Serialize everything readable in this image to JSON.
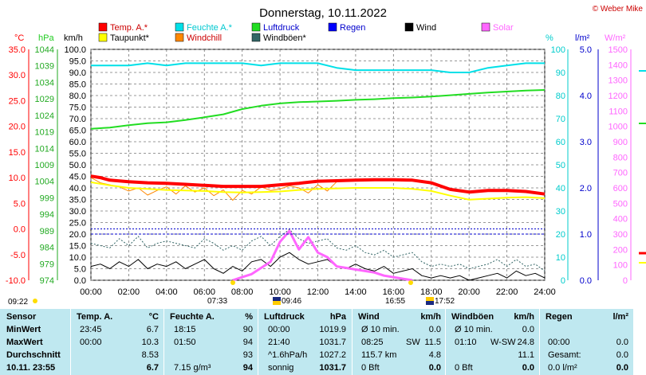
{
  "title": "Donnerstag, 10.11.2022",
  "copyright": "© Weber Mike",
  "legend": [
    {
      "label": "Temp. A.*",
      "color": "#ff0000"
    },
    {
      "label": "Feuchte A.*",
      "color": "#00e0e8"
    },
    {
      "label": "Luftdruck",
      "color": "#22dd22"
    },
    {
      "label": "Regen",
      "color": "#0000ff"
    },
    {
      "label": "Wind",
      "color": "#000000"
    },
    {
      "label": "Solar",
      "color": "#ff66ff"
    },
    {
      "label": "Taupunkt*",
      "color": "#ffff00"
    },
    {
      "label": "Windchill",
      "color": "#ff8800"
    },
    {
      "label": "Windböen*",
      "color": "#336666"
    }
  ],
  "axis_units": {
    "temp": "°C",
    "pressure": "hPa",
    "wind": "km/h",
    "humidity": "%",
    "rain": "l/m²",
    "solar": "W/m²"
  },
  "axis_colors": {
    "temp": "#ff0000",
    "pressure": "#22cc22",
    "wind": "#000000",
    "humidity": "#00cccc",
    "rain": "#0000cc",
    "solar": "#ff66ff"
  },
  "axis_ticks": {
    "temp": [
      "35.0",
      "30.0",
      "25.0",
      "20.0",
      "15.0",
      "10.0",
      "5.0",
      "0.0",
      "-5.0",
      "-10.0"
    ],
    "pressure": [
      "1044",
      "1039",
      "1034",
      "1029",
      "1024",
      "1019",
      "1014",
      "1009",
      "1004",
      "999",
      "994",
      "989",
      "984",
      "979",
      "974"
    ],
    "wind": [
      "100.0",
      "95.0",
      "90.0",
      "85.0",
      "80.0",
      "75.0",
      "70.0",
      "65.0",
      "60.0",
      "55.0",
      "50.0",
      "45.0",
      "40.0",
      "35.0",
      "30.0",
      "25.0",
      "20.0",
      "15.0",
      "10.0",
      "5.0",
      "0.0"
    ],
    "humidity": [
      "100",
      "90",
      "80",
      "70",
      "60",
      "50",
      "40",
      "30",
      "20",
      "10",
      "0"
    ],
    "rain": [
      "5.0",
      "4.0",
      "3.0",
      "2.0",
      "1.0",
      "0.0"
    ],
    "solar": [
      "1500",
      "1400",
      "1300",
      "1200",
      "1100",
      "1000",
      "900",
      "800",
      "700",
      "600",
      "500",
      "400",
      "300",
      "200",
      "100",
      "0"
    ],
    "time": [
      "00:00",
      "02:00",
      "04:00",
      "06:00",
      "08:00",
      "10:00",
      "12:00",
      "14:00",
      "16:00",
      "18:00",
      "20:00",
      "22:00",
      "24:00"
    ]
  },
  "sun_times": {
    "dawn": "07:33",
    "sunrise": "09:46",
    "noon_mark": "09:22",
    "sunset": "16:55",
    "dusk": "17:52"
  },
  "chart_data": {
    "type": "line",
    "title": "Donnerstag, 10.11.2022",
    "x_unit": "hours",
    "xlim": [
      0,
      24
    ],
    "series": [
      {
        "name": "Temp. A.*",
        "axis": "temp",
        "color": "#ff0000",
        "x": [
          0,
          0.5,
          1,
          2,
          3,
          4,
          5,
          6,
          7,
          8,
          9,
          10,
          11,
          12,
          13,
          14,
          15,
          16,
          17,
          18,
          19,
          20,
          21,
          22,
          23,
          24
        ],
        "y": [
          10.3,
          10.0,
          9.5,
          9.2,
          9.0,
          8.9,
          8.7,
          8.5,
          8.3,
          8.3,
          8.3,
          8.6,
          8.9,
          9.3,
          9.4,
          9.5,
          9.6,
          9.6,
          9.5,
          9.0,
          7.7,
          7.2,
          7.5,
          7.5,
          7.3,
          6.8
        ]
      },
      {
        "name": "Taupunkt*",
        "axis": "temp",
        "color": "#ffff00",
        "x": [
          0,
          1,
          2,
          3,
          4,
          5,
          6,
          7,
          8,
          9,
          10,
          11,
          12,
          13,
          14,
          15,
          16,
          17,
          18,
          19,
          20,
          21,
          22,
          23,
          24
        ],
        "y": [
          9.1,
          8.5,
          8.0,
          7.8,
          7.6,
          7.5,
          7.4,
          7.2,
          7.1,
          7.2,
          7.3,
          7.6,
          7.8,
          7.9,
          8.0,
          8.0,
          8.0,
          7.8,
          7.4,
          6.5,
          5.7,
          5.9,
          6.1,
          6.2,
          6.0
        ]
      },
      {
        "name": "Windchill",
        "axis": "temp",
        "color": "#ff8800",
        "x": [
          0,
          0.5,
          1,
          1.5,
          2,
          2.5,
          3,
          3.5,
          4,
          4.5,
          5,
          5.5,
          6,
          6.5,
          7,
          7.5,
          8,
          8.5,
          9,
          9.5,
          10,
          10.5,
          11,
          11.5,
          12,
          12.5,
          13,
          14,
          15,
          16,
          17,
          18,
          19,
          20,
          21,
          22,
          23,
          24
        ],
        "y": [
          10.0,
          9.0,
          8.6,
          8.2,
          7.4,
          8.0,
          6.6,
          7.5,
          8.2,
          6.8,
          8.4,
          7.2,
          8.0,
          6.5,
          7.6,
          5.6,
          7.5,
          6.8,
          8.2,
          7.5,
          7.8,
          8.4,
          8.0,
          7.0,
          8.6,
          7.4,
          9.2,
          9.5,
          9.6,
          9.6,
          9.5,
          9.0,
          7.7,
          7.2,
          7.5,
          7.5,
          7.3,
          6.8
        ]
      },
      {
        "name": "Feuchte A.*",
        "axis": "humidity",
        "color": "#00e0e8",
        "x": [
          0,
          1,
          2,
          3,
          4,
          5,
          6,
          7,
          8,
          9,
          10,
          11,
          12,
          13,
          14,
          15,
          16,
          17,
          18,
          19,
          20,
          21,
          22,
          23,
          24
        ],
        "y": [
          93,
          93,
          93,
          94,
          93,
          94,
          94,
          94,
          94,
          93,
          94,
          94,
          94,
          92,
          91,
          91,
          91,
          91,
          91,
          90,
          90,
          92,
          93,
          94,
          94
        ]
      },
      {
        "name": "Luftdruck",
        "axis": "pressure",
        "color": "#22dd22",
        "x": [
          0,
          1,
          2,
          3,
          4,
          5,
          6,
          7,
          8,
          9,
          10,
          11,
          12,
          13,
          14,
          15,
          16,
          17,
          18,
          19,
          20,
          21,
          22,
          23,
          24
        ],
        "y": [
          1019.9,
          1020.3,
          1021.0,
          1021.6,
          1021.9,
          1022.6,
          1023.4,
          1024.3,
          1025.9,
          1026.9,
          1027.6,
          1028.0,
          1028.2,
          1028.4,
          1028.7,
          1028.9,
          1029.2,
          1029.4,
          1029.7,
          1030.1,
          1030.5,
          1030.9,
          1031.2,
          1031.5,
          1031.7
        ]
      },
      {
        "name": "Regen",
        "axis": "rain",
        "color": "#0000cc",
        "x": [
          0,
          24
        ],
        "y": [
          1.0,
          1.0
        ]
      },
      {
        "name": "Wind",
        "axis": "wind",
        "color": "#000000",
        "x": [
          0,
          0.5,
          1,
          1.5,
          2,
          2.5,
          3,
          3.5,
          4,
          4.5,
          5,
          5.5,
          6,
          6.5,
          7,
          7.5,
          8,
          8.5,
          9,
          9.5,
          10,
          10.5,
          11,
          11.5,
          12,
          12.5,
          13,
          13.5,
          14,
          14.5,
          15,
          15.5,
          16,
          16.5,
          17,
          17.5,
          18,
          18.5,
          19,
          19.5,
          20,
          20.5,
          21,
          21.5,
          22,
          22.5,
          23,
          23.5,
          24
        ],
        "y": [
          6,
          7,
          5,
          8,
          6,
          9,
          5,
          7,
          6,
          8,
          5,
          7,
          9,
          5,
          3,
          6,
          4,
          8,
          9,
          6,
          10,
          12,
          9,
          7,
          8,
          9,
          6,
          5,
          7,
          5,
          4,
          6,
          3,
          4,
          5,
          2,
          1,
          2,
          1,
          2,
          0,
          1,
          2,
          3,
          1,
          4,
          2,
          3,
          1
        ]
      },
      {
        "name": "Windböen*",
        "axis": "wind",
        "color": "#336666",
        "x": [
          0,
          0.5,
          1,
          1.5,
          2,
          2.5,
          3,
          3.5,
          4,
          4.5,
          5,
          5.5,
          6,
          6.5,
          7,
          7.5,
          8,
          8.5,
          9,
          9.5,
          10,
          10.5,
          11,
          11.5,
          12,
          12.5,
          13,
          13.5,
          14,
          14.5,
          15,
          15.5,
          16,
          16.5,
          17,
          17.5,
          18,
          18.5,
          19,
          19.5,
          20,
          20.5,
          21,
          21.5,
          22,
          22.5,
          23,
          23.5,
          24
        ],
        "y": [
          16,
          15,
          14,
          18,
          15,
          19,
          14,
          16,
          17,
          16,
          15,
          14,
          18,
          16,
          13,
          15,
          13,
          17,
          19,
          15,
          19,
          22,
          18,
          16,
          17,
          18,
          14,
          13,
          15,
          12,
          11,
          13,
          10,
          11,
          12,
          8,
          6,
          7,
          6,
          7,
          5,
          6,
          7,
          9,
          6,
          9,
          6,
          7,
          4
        ]
      },
      {
        "name": "Solar",
        "axis": "solar",
        "color": "#ff66ff",
        "x": [
          7.5,
          8,
          8.5,
          9,
          9.5,
          10,
          10.5,
          11,
          11.5,
          12,
          12.5,
          13,
          13.5,
          14,
          14.5,
          15,
          15.5,
          16,
          16.5,
          17
        ],
        "y": [
          0,
          20,
          40,
          80,
          120,
          250,
          320,
          200,
          280,
          180,
          150,
          90,
          80,
          70,
          60,
          50,
          30,
          20,
          10,
          0
        ]
      }
    ]
  },
  "table": {
    "headers": [
      "Sensor",
      "Temp. A.",
      "°C",
      "Feuchte A.",
      "%",
      "Luftdruck",
      "hPa",
      "Wind",
      "km/h",
      "Windböen",
      "km/h",
      "Regen",
      "l/m²"
    ],
    "rows": [
      {
        "label": "MinWert",
        "temp_time": "23:45",
        "temp": "6.7",
        "hum_time": "18:15",
        "hum": "90",
        "press_time": "00:00",
        "press": "1019.9",
        "wind_desc": "Ø 10 min.",
        "wind": "0.0",
        "gust_desc": "Ø 10 min.",
        "gust": "0.0",
        "rain_desc": "",
        "rain": ""
      },
      {
        "label": "MaxWert",
        "temp_time": "00:00",
        "temp": "10.3",
        "hum_time": "01:50",
        "hum": "94",
        "press_time": "21:40",
        "press": "1031.7",
        "wind_desc": "08:25",
        "wind_dir": "SW",
        "wind": "11.5",
        "gust_desc": "01:10",
        "gust_dir": "W-SW",
        "gust": "24.8",
        "rain_desc": "00:00",
        "rain": "0.0"
      },
      {
        "label": "Durchschnitt",
        "temp_time": "",
        "temp": "8.53",
        "hum_time": "",
        "hum": "93",
        "press_time": "^1.6hPa/h",
        "press": "1027.2",
        "wind_desc": "115.7 km",
        "wind": "4.8",
        "gust_desc": "",
        "gust": "11.1",
        "rain_desc": "Gesamt:",
        "rain": "0.0"
      },
      {
        "label": "10.11. 23:55",
        "temp_time": "",
        "temp": "6.7",
        "hum_time": "7.15 g/m³",
        "hum": "94",
        "press_time": "sonnig",
        "press": "1031.7",
        "wind_desc": "0 Bft",
        "wind": "0.0",
        "gust_desc": "0 Bft",
        "gust": "0.0",
        "rain_desc": "0.0 l/m²",
        "rain": "0.0"
      }
    ]
  }
}
